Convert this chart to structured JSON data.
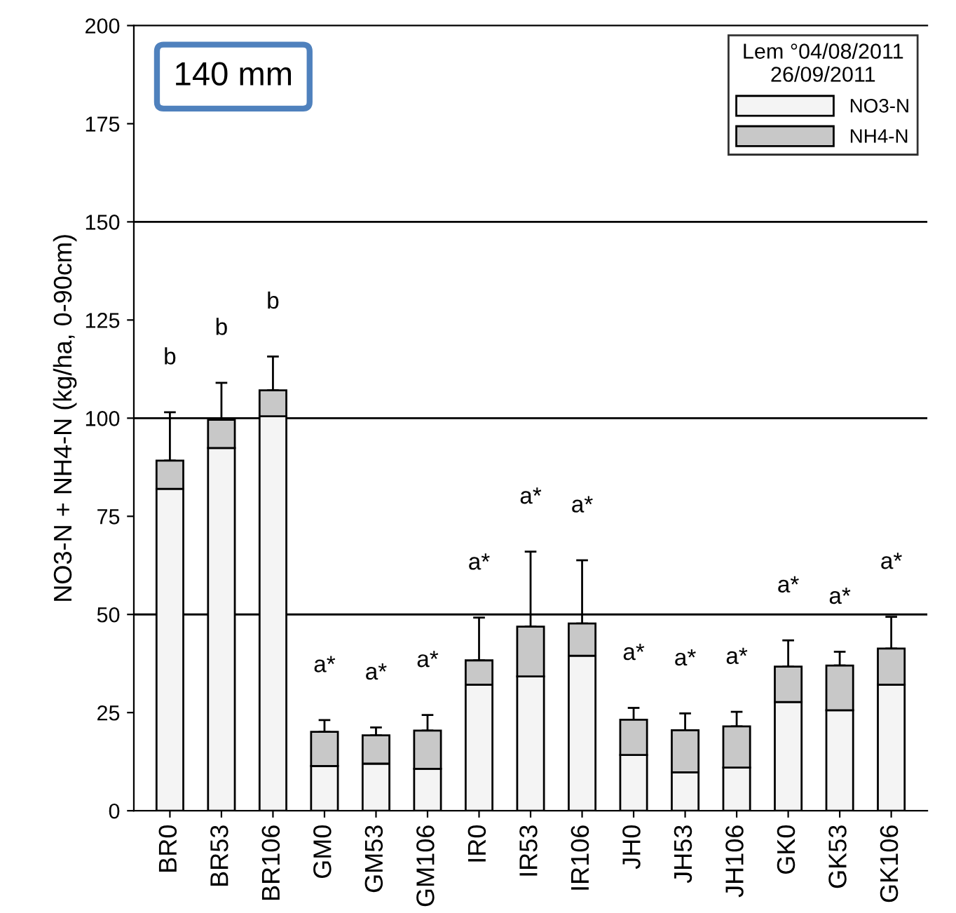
{
  "chart_data": {
    "type": "bar",
    "stacked": true,
    "ylabel": "NO3-N + NH4-N (kg/ha, 0-90cm)",
    "legend_title": "Lem °04/08/2011\n26/09/2011",
    "legend": "top right",
    "categories": [
      "BR0",
      "BR53",
      "BR106",
      "GM0",
      "GM53",
      "GM106",
      "IR0",
      "IR53",
      "IR106",
      "JH0",
      "JH53",
      "JH106",
      "GK0",
      "GK53",
      "GK106"
    ],
    "series": [
      {
        "name": "NO3-N",
        "color": "#f4f4f4",
        "values": [
          82.0,
          92.4,
          100.5,
          11.4,
          12.0,
          10.7,
          32.1,
          34.2,
          39.5,
          14.2,
          9.8,
          11.0,
          27.7,
          25.6,
          32.1
        ]
      },
      {
        "name": "NH4-N",
        "color": "#c8c8c8",
        "values": [
          7.2,
          7.2,
          6.6,
          8.7,
          7.2,
          9.7,
          6.2,
          12.7,
          8.2,
          9.0,
          10.7,
          10.5,
          9.0,
          11.4,
          9.2
        ],
        "errors": [
          [
            89.2,
            101.5
          ],
          [
            99.6,
            109.0
          ],
          [
            107.1,
            115.7
          ],
          [
            20.1,
            23.1
          ],
          [
            19.2,
            21.2
          ],
          [
            20.4,
            24.4
          ],
          [
            38.3,
            49.2
          ],
          [
            46.9,
            66.0
          ],
          [
            47.7,
            63.8
          ],
          [
            23.2,
            26.2
          ],
          [
            20.5,
            24.8
          ],
          [
            21.5,
            25.2
          ],
          [
            36.7,
            43.4
          ],
          [
            37.0,
            40.5
          ],
          [
            41.3,
            49.4
          ]
        ]
      }
    ],
    "ylim": [
      0,
      200
    ],
    "yticks": [
      0,
      25,
      50,
      75,
      100,
      125,
      150,
      175,
      200
    ],
    "ref_lines": [
      {
        "axis": "y",
        "value": 50,
        "color": "#000000"
      },
      {
        "axis": "y",
        "value": 100,
        "color": "#000000"
      },
      {
        "axis": "y",
        "value": 150,
        "color": "#000000"
      }
    ],
    "annotations": [
      "140 mm",
      "b",
      "b",
      "b",
      "a*",
      "a*",
      "a*",
      "a*",
      "a*",
      "a*",
      "a*",
      "a*",
      "a*",
      "a*",
      "a*",
      "a*"
    ]
  }
}
